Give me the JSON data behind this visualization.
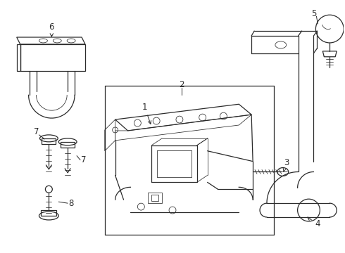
{
  "bg_color": "#ffffff",
  "line_color": "#2a2a2a",
  "lw": 0.9,
  "tlw": 0.55,
  "fs": 8.5,
  "arrow_lw": 0.7
}
